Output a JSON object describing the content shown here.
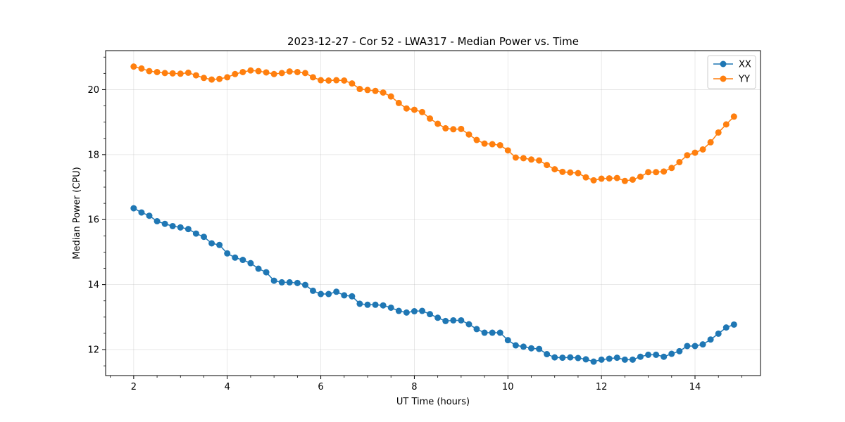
{
  "chart_data": {
    "type": "line",
    "title": "2023-12-27 - Cor 52 - LWA317 - Median Power vs. Time",
    "xlabel": "UT Time (hours)",
    "ylabel": "Median Power (CPU)",
    "xlim": [
      1.4,
      15.4
    ],
    "ylim": [
      11.2,
      21.2
    ],
    "xticks": [
      2,
      4,
      6,
      8,
      10,
      12,
      14
    ],
    "yticks": [
      12,
      14,
      16,
      18,
      20
    ],
    "grid": true,
    "legend_position": "top-right",
    "x": [
      2.0,
      2.167,
      2.333,
      2.5,
      2.667,
      2.833,
      3.0,
      3.167,
      3.333,
      3.5,
      3.667,
      3.833,
      4.0,
      4.167,
      4.333,
      4.5,
      4.667,
      4.833,
      5.0,
      5.167,
      5.333,
      5.5,
      5.667,
      5.833,
      6.0,
      6.167,
      6.333,
      6.5,
      6.667,
      6.833,
      7.0,
      7.167,
      7.333,
      7.5,
      7.667,
      7.833,
      8.0,
      8.167,
      8.333,
      8.5,
      8.667,
      8.833,
      9.0,
      9.167,
      9.333,
      9.5,
      9.667,
      9.833,
      10.0,
      10.167,
      10.333,
      10.5,
      10.667,
      10.833,
      11.0,
      11.167,
      11.333,
      11.5,
      11.667,
      11.833,
      12.0,
      12.167,
      12.333,
      12.5,
      12.667,
      12.833,
      13.0,
      13.167,
      13.333,
      13.5,
      13.667,
      13.833,
      14.0,
      14.167,
      14.333,
      14.5,
      14.667,
      14.833
    ],
    "series": [
      {
        "name": "XX",
        "color": "#1f77b4",
        "values": [
          16.35,
          16.22,
          16.12,
          15.95,
          15.87,
          15.8,
          15.76,
          15.71,
          15.57,
          15.47,
          15.27,
          15.22,
          14.96,
          14.83,
          14.76,
          14.66,
          14.49,
          14.38,
          14.12,
          14.07,
          14.07,
          14.05,
          13.99,
          13.81,
          13.71,
          13.71,
          13.78,
          13.67,
          13.64,
          13.41,
          13.38,
          13.38,
          13.36,
          13.29,
          13.19,
          13.14,
          13.18,
          13.19,
          13.09,
          12.98,
          12.88,
          12.9,
          12.9,
          12.78,
          12.63,
          12.52,
          12.52,
          12.52,
          12.29,
          12.13,
          12.09,
          12.04,
          12.02,
          11.86,
          11.76,
          11.75,
          11.76,
          11.74,
          11.7,
          11.63,
          11.69,
          11.72,
          11.75,
          11.69,
          11.69,
          11.78,
          11.84,
          11.84,
          11.78,
          11.87,
          11.95,
          12.11,
          12.11,
          12.16,
          12.31,
          12.49,
          12.68,
          12.77
        ]
      },
      {
        "name": "YY",
        "color": "#ff7f0e",
        "values": [
          20.71,
          20.65,
          20.57,
          20.54,
          20.51,
          20.5,
          20.49,
          20.52,
          20.44,
          20.36,
          20.31,
          20.33,
          20.38,
          20.48,
          20.54,
          20.59,
          20.57,
          20.53,
          20.48,
          20.51,
          20.56,
          20.54,
          20.51,
          20.38,
          20.29,
          20.28,
          20.29,
          20.28,
          20.19,
          20.02,
          19.99,
          19.96,
          19.91,
          19.79,
          19.59,
          19.42,
          19.38,
          19.31,
          19.11,
          18.95,
          18.81,
          18.78,
          18.79,
          18.62,
          18.45,
          18.34,
          18.32,
          18.29,
          18.13,
          17.91,
          17.89,
          17.85,
          17.82,
          17.68,
          17.55,
          17.47,
          17.45,
          17.43,
          17.3,
          17.21,
          17.26,
          17.27,
          17.28,
          17.19,
          17.23,
          17.32,
          17.46,
          17.46,
          17.48,
          17.59,
          17.77,
          17.98,
          18.06,
          18.16,
          18.38,
          18.68,
          18.93,
          19.17
        ]
      }
    ]
  }
}
